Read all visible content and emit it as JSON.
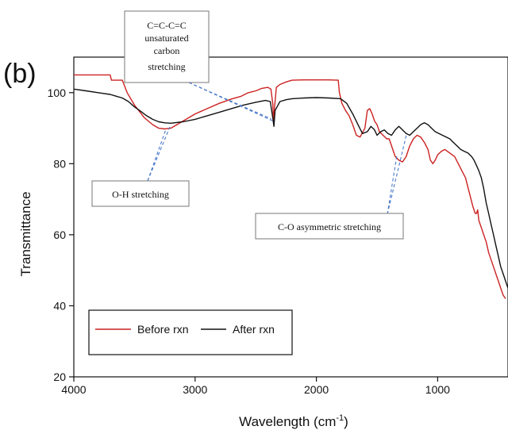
{
  "chart_data": {
    "type": "line",
    "panel_label": "(b)",
    "title": "",
    "xlabel": "Wavelength (cm",
    "xlabel_sup": "-1",
    "xlabel_close": ")",
    "ylabel": "Transmittance",
    "xlim": [
      4000,
      420
    ],
    "ylim": [
      20,
      110
    ],
    "x_ticks": [
      4000,
      3000,
      2000,
      1000
    ],
    "y_ticks": [
      20,
      40,
      60,
      80,
      100
    ],
    "x_tick_labels": [
      "4000",
      "3000",
      "2000",
      "1000"
    ],
    "y_tick_labels": [
      "20",
      "40",
      "60",
      "80",
      "100"
    ],
    "grid": false,
    "legend_position": "bottom-left",
    "series": [
      {
        "name": "Before rxn",
        "color": "#cc2222",
        "x": [
          4000,
          3700,
          3690,
          3600,
          3560,
          3500,
          3420,
          3350,
          3300,
          3250,
          3200,
          3150,
          3100,
          3000,
          2900,
          2800,
          2700,
          2620,
          2560,
          2500,
          2450,
          2400,
          2375,
          2360,
          2352,
          2345,
          2330,
          2300,
          2250,
          2200,
          2100,
          2000,
          1900,
          1820,
          1810,
          1790,
          1760,
          1730,
          1700,
          1670,
          1640,
          1600,
          1580,
          1560,
          1540,
          1520,
          1500,
          1480,
          1450,
          1420,
          1400,
          1380,
          1350,
          1320,
          1290,
          1260,
          1230,
          1200,
          1170,
          1140,
          1110,
          1080,
          1060,
          1040,
          1020,
          1000,
          970,
          940,
          900,
          860,
          830,
          800,
          770,
          740,
          710,
          690,
          680,
          670,
          660,
          640,
          620,
          600,
          580,
          560,
          540,
          520,
          500,
          480,
          460,
          440
        ],
        "y": [
          105,
          105,
          103.5,
          103.5,
          100,
          96.5,
          93,
          91,
          90,
          89.8,
          90,
          91,
          92,
          94,
          95.5,
          97,
          98.2,
          99,
          100,
          100.5,
          101.2,
          101.5,
          101,
          97,
          92,
          96,
          101.5,
          102.3,
          103,
          103.5,
          103.6,
          103.6,
          103.6,
          103.5,
          100,
          97,
          95,
          93.5,
          91,
          88,
          87.5,
          90,
          95,
          95.5,
          94,
          92,
          91,
          89,
          88,
          87,
          87,
          85,
          82,
          81,
          80.5,
          82,
          85,
          87,
          88,
          87.5,
          86,
          84,
          81,
          80,
          81,
          82.5,
          83.5,
          84,
          83,
          82,
          80,
          78,
          76,
          72,
          68,
          66,
          66,
          67,
          64,
          62,
          60,
          58,
          55,
          53,
          51,
          49,
          47,
          45,
          43,
          42
        ]
      },
      {
        "name": "After rxn",
        "color": "#111111",
        "x": [
          4000,
          3900,
          3800,
          3700,
          3650,
          3600,
          3550,
          3500,
          3450,
          3400,
          3350,
          3300,
          3250,
          3200,
          3100,
          3000,
          2900,
          2800,
          2700,
          2600,
          2500,
          2420,
          2380,
          2360,
          2350,
          2340,
          2300,
          2250,
          2200,
          2100,
          2000,
          1900,
          1800,
          1750,
          1700,
          1650,
          1620,
          1580,
          1550,
          1520,
          1500,
          1470,
          1440,
          1410,
          1380,
          1350,
          1320,
          1290,
          1260,
          1230,
          1200,
          1170,
          1140,
          1110,
          1080,
          1050,
          1020,
          990,
          960,
          930,
          900,
          870,
          840,
          810,
          780,
          750,
          720,
          700,
          680,
          660,
          640,
          620,
          600,
          580,
          560,
          540,
          520,
          500,
          480,
          460,
          440,
          420
        ],
        "y": [
          101,
          100.5,
          100,
          99.5,
          99,
          98.5,
          97.5,
          96,
          94.8,
          93.5,
          92.5,
          91.8,
          91.5,
          91.4,
          91.8,
          92.5,
          93.5,
          94.5,
          95.5,
          96.5,
          97.3,
          97.8,
          97.5,
          93,
          90.5,
          95,
          97.5,
          98,
          98.3,
          98.5,
          98.6,
          98.5,
          98.3,
          97,
          94,
          90.5,
          88.5,
          89,
          90.5,
          89.5,
          88,
          89,
          89.5,
          88.5,
          88,
          89.5,
          90.5,
          89.5,
          88.5,
          88,
          89,
          90,
          91,
          91.5,
          91,
          90,
          89,
          88.5,
          88,
          87.5,
          87,
          86,
          85,
          84,
          83.5,
          83,
          82,
          81,
          79.5,
          78,
          76,
          73,
          69,
          66,
          63,
          60,
          57,
          54,
          51,
          49,
          47,
          45
        ]
      }
    ],
    "annotations": [
      {
        "lines": [
          "C=C-C=C",
          "unsaturated",
          "carbon",
          "stretching"
        ]
      },
      {
        "lines": [
          "O-H stretching"
        ]
      },
      {
        "lines": [
          "C-O asymmetric stretching"
        ]
      }
    ]
  }
}
